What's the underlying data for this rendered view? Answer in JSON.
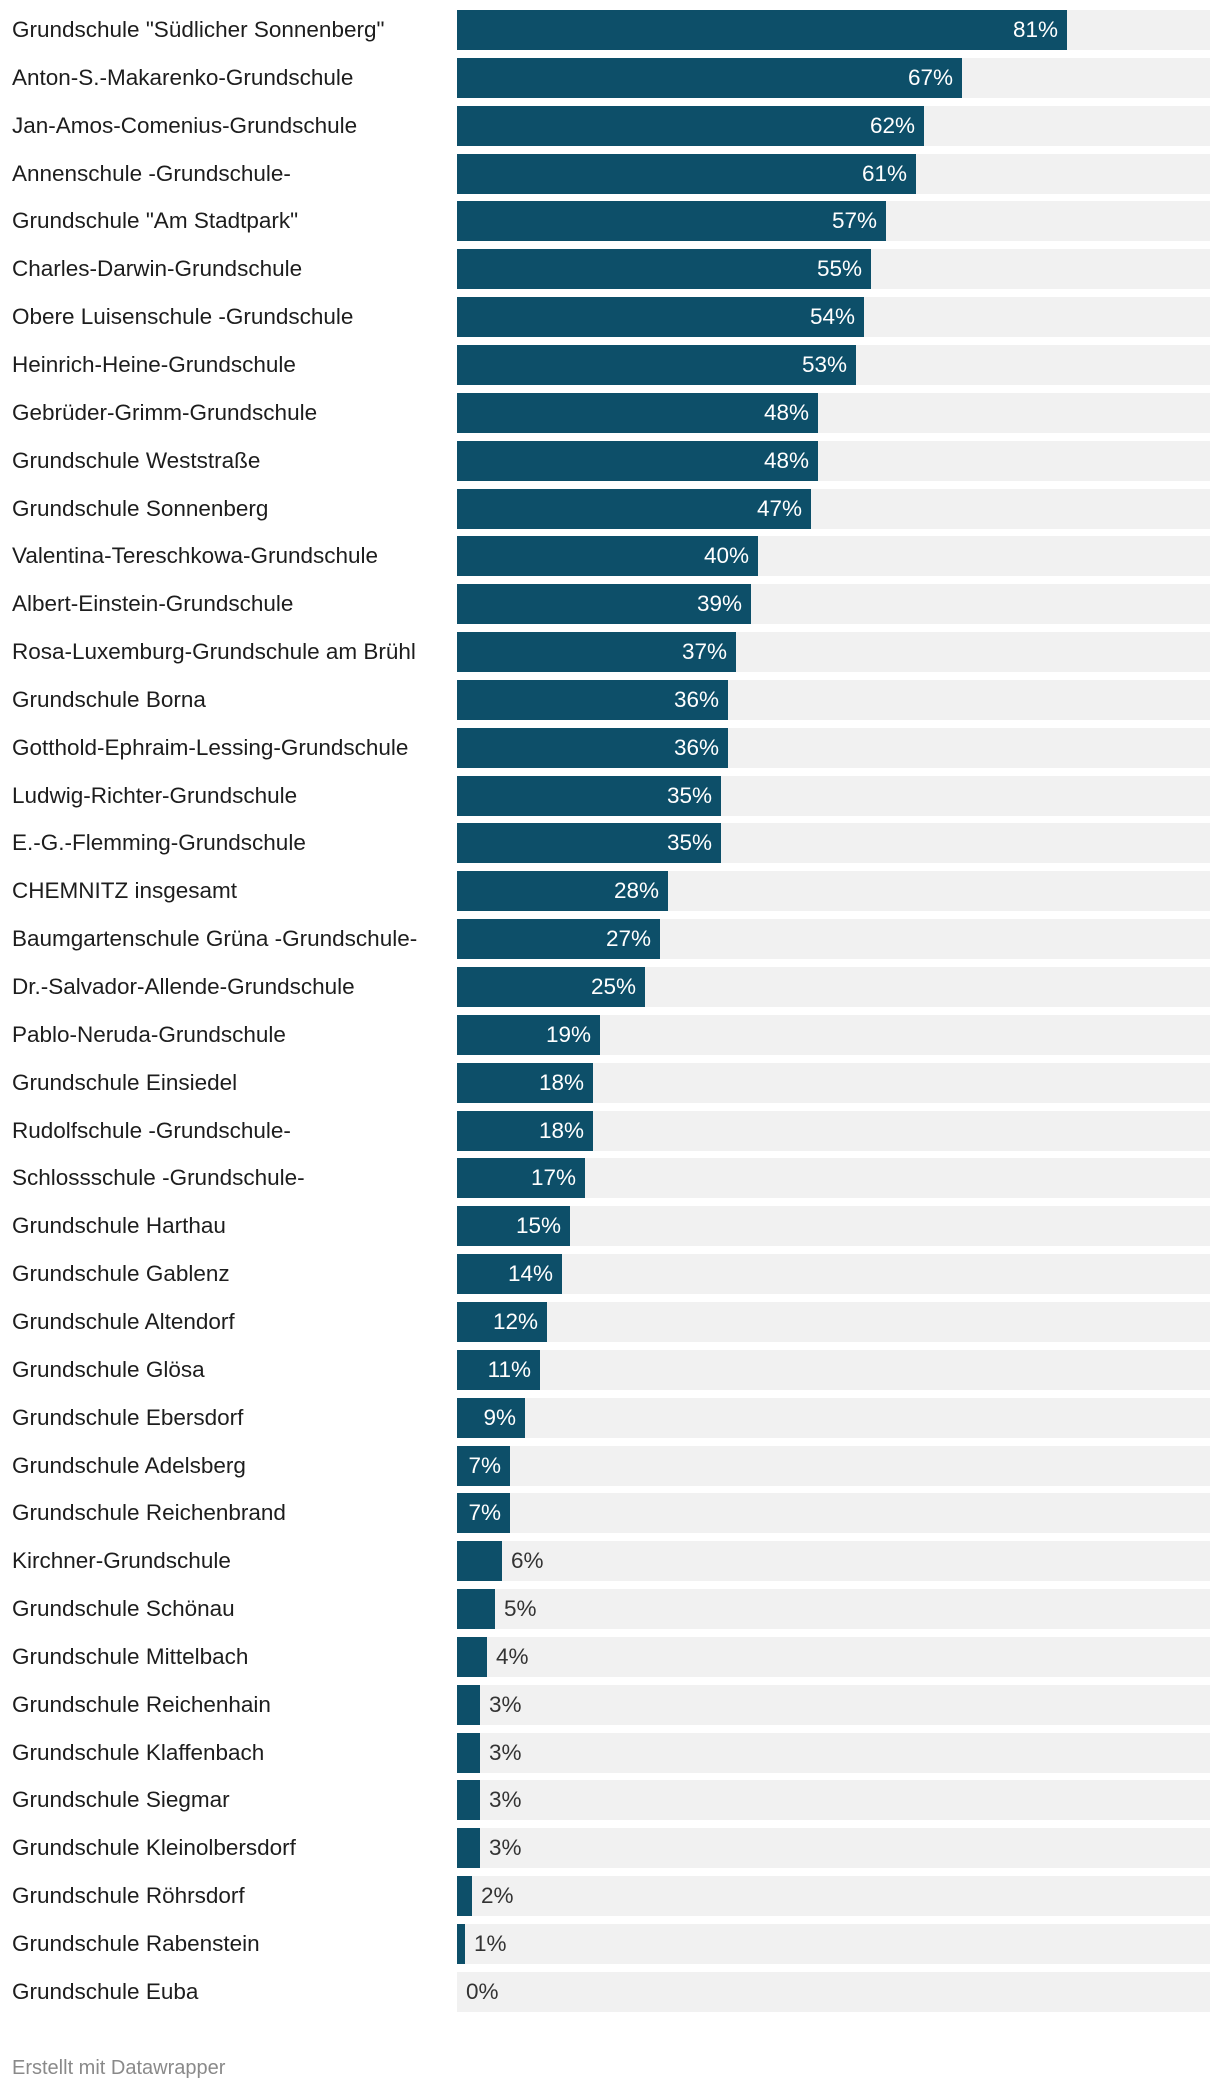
{
  "chart_data": {
    "type": "bar",
    "orientation": "horizontal",
    "title": "",
    "xlabel": "",
    "ylabel": "",
    "xlim": [
      0,
      100
    ],
    "value_suffix": "%",
    "colors": {
      "bar": "#0d4f69",
      "track": "#f1f1f1",
      "label_inside": "#ffffff",
      "label_outside": "#333333"
    },
    "categories": [
      "Grundschule \"Südlicher Sonnenberg\"",
      "Anton-S.-Makarenko-Grundschule",
      "Jan-Amos-Comenius-Grundschule",
      "Annenschule -Grundschule-",
      "Grundschule \"Am Stadtpark\"",
      "Charles-Darwin-Grundschule",
      "Obere Luisenschule -Grundschule",
      "Heinrich-Heine-Grundschule",
      "Gebrüder-Grimm-Grundschule",
      "Grundschule Weststraße",
      "Grundschule Sonnenberg",
      "Valentina-Tereschkowa-Grundschule",
      "Albert-Einstein-Grundschule",
      "Rosa-Luxemburg-Grundschule am Brühl",
      "Grundschule Borna",
      "Gotthold-Ephraim-Lessing-Grundschule",
      "Ludwig-Richter-Grundschule",
      "E.-G.-Flemming-Grundschule",
      "CHEMNITZ insgesamt",
      "Baumgartenschule Grüna -Grundschule-",
      "Dr.-Salvador-Allende-Grundschule",
      "Pablo-Neruda-Grundschule",
      "Grundschule Einsiedel",
      "Rudolfschule -Grundschule-",
      "Schlossschule -Grundschule-",
      "Grundschule Harthau",
      "Grundschule Gablenz",
      "Grundschule Altendorf",
      "Grundschule Glösa",
      "Grundschule Ebersdorf",
      "Grundschule Adelsberg",
      "Grundschule Reichenbrand",
      "Kirchner-Grundschule",
      "Grundschule Schönau",
      "Grundschule Mittelbach",
      "Grundschule Reichenhain",
      "Grundschule Klaffenbach",
      "Grundschule Siegmar",
      "Grundschule Kleinolbersdorf",
      "Grundschule Röhrsdorf",
      "Grundschule Rabenstein",
      "Grundschule Euba"
    ],
    "values": [
      81,
      67,
      62,
      61,
      57,
      55,
      54,
      53,
      48,
      48,
      47,
      40,
      39,
      37,
      36,
      36,
      35,
      35,
      28,
      27,
      25,
      19,
      18,
      18,
      17,
      15,
      14,
      12,
      11,
      9,
      7,
      7,
      6,
      5,
      4,
      3,
      3,
      3,
      3,
      2,
      1,
      0
    ],
    "value_labels": [
      "81%",
      "67%",
      "62%",
      "61%",
      "57%",
      "55%",
      "54%",
      "53%",
      "48%",
      "48%",
      "47%",
      "40%",
      "39%",
      "37%",
      "36%",
      "36%",
      "35%",
      "35%",
      "28%",
      "27%",
      "25%",
      "19%",
      "18%",
      "18%",
      "17%",
      "15%",
      "14%",
      "12%",
      "11%",
      "9%",
      "7%",
      "7%",
      "6%",
      "5%",
      "4%",
      "3%",
      "3%",
      "3%",
      "3%",
      "2%",
      "1%",
      "0%"
    ]
  },
  "footer": {
    "credit": "Erstellt mit Datawrapper"
  }
}
